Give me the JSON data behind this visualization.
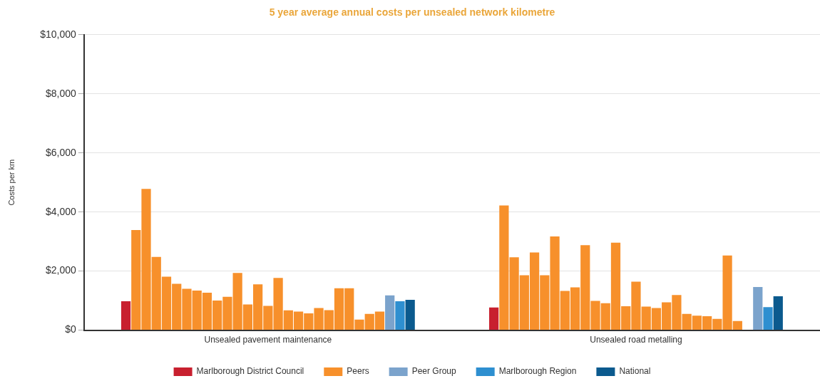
{
  "chart_data": {
    "type": "bar",
    "title": "5 year average annual costs per unsealed network kilometre",
    "ylabel": "Costs per km",
    "categories": [
      "Unsealed pavement maintenance",
      "Unsealed road metalling"
    ],
    "series": [
      {
        "name": "Marlborough District Council",
        "color": "#c8202f",
        "values": [
          980,
          770
        ]
      },
      {
        "name": "Peers",
        "color": "#f7902b",
        "values": [
          3390,
          4220
        ]
      },
      {
        "color": "#f7902b",
        "values": [
          4780,
          2470
        ]
      },
      {
        "color": "#f7902b",
        "values": [
          2480,
          1860
        ]
      },
      {
        "color": "#f7902b",
        "values": [
          1810,
          2630
        ]
      },
      {
        "color": "#f7902b",
        "values": [
          1570,
          1860
        ]
      },
      {
        "color": "#f7902b",
        "values": [
          1400,
          3170
        ]
      },
      {
        "color": "#f7902b",
        "values": [
          1340,
          1330
        ]
      },
      {
        "color": "#f7902b",
        "values": [
          1270,
          1450
        ]
      },
      {
        "color": "#f7902b",
        "values": [
          1000,
          2880
        ]
      },
      {
        "color": "#f7902b",
        "values": [
          1130,
          990
        ]
      },
      {
        "color": "#f7902b",
        "values": [
          1940,
          910
        ]
      },
      {
        "color": "#f7902b",
        "values": [
          870,
          2960
        ]
      },
      {
        "color": "#f7902b",
        "values": [
          1550,
          810
        ]
      },
      {
        "color": "#f7902b",
        "values": [
          820,
          1640
        ]
      },
      {
        "color": "#f7902b",
        "values": [
          1770,
          800
        ]
      },
      {
        "color": "#f7902b",
        "values": [
          670,
          750
        ]
      },
      {
        "color": "#f7902b",
        "values": [
          630,
          940
        ]
      },
      {
        "color": "#f7902b",
        "values": [
          570,
          1190
        ]
      },
      {
        "color": "#f7902b",
        "values": [
          750,
          550
        ]
      },
      {
        "color": "#f7902b",
        "values": [
          680,
          490
        ]
      },
      {
        "color": "#f7902b",
        "values": [
          1420,
          470
        ]
      },
      {
        "color": "#f7902b",
        "values": [
          1420,
          380
        ]
      },
      {
        "color": "#f7902b",
        "values": [
          360,
          2530
        ]
      },
      {
        "color": "#f7902b",
        "values": [
          550,
          310
        ]
      },
      {
        "color": "#f7902b",
        "values": [
          630,
          null
        ]
      },
      {
        "name": "Peer Group",
        "color": "#7ba3cc",
        "values": [
          1180,
          1460
        ]
      },
      {
        "name": "Marlborough Region",
        "color": "#2e8fd0",
        "values": [
          980,
          780
        ]
      },
      {
        "name": "National",
        "color": "#0b5a8e",
        "values": [
          1030,
          1150
        ]
      }
    ],
    "ylim": [
      0,
      10000
    ],
    "yticks": [
      {
        "value": 0,
        "label": "$0"
      },
      {
        "value": 2000,
        "label": "$2,000"
      },
      {
        "value": 4000,
        "label": "$4,000"
      },
      {
        "value": 6000,
        "label": "$6,000"
      },
      {
        "value": 8000,
        "label": "$8,000"
      },
      {
        "value": 10000,
        "label": "$10,000"
      }
    ],
    "grid": "y",
    "legend": "bottom"
  }
}
